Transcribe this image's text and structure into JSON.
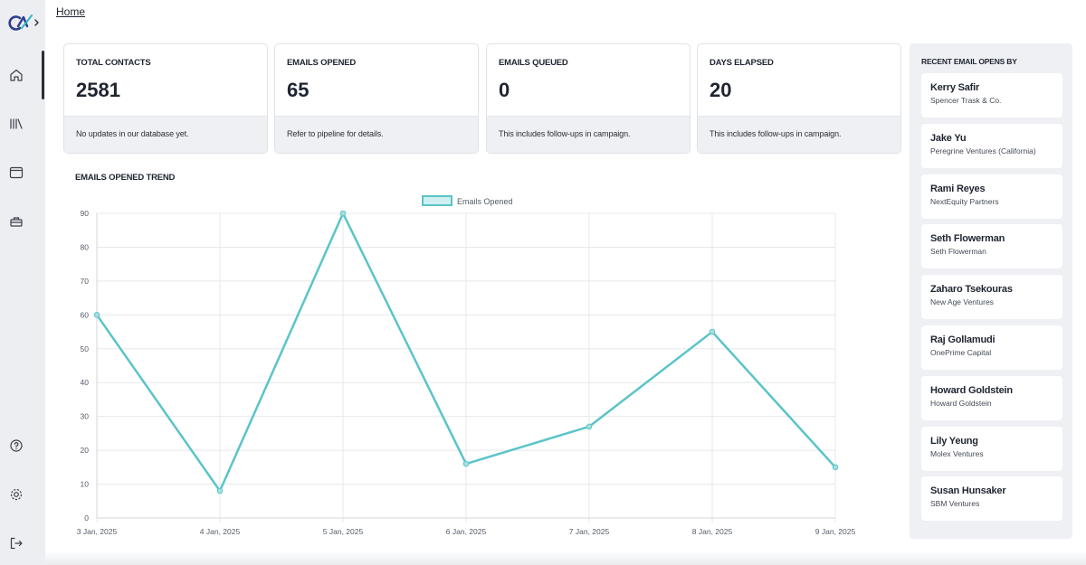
{
  "breadcrumb": {
    "home_label": "Home"
  },
  "sidebar": {
    "items": [
      {
        "name": "home-icon"
      },
      {
        "name": "library-icon"
      },
      {
        "name": "calendar-icon"
      },
      {
        "name": "toolbox-icon"
      },
      {
        "name": "help-icon"
      },
      {
        "name": "settings-icon"
      },
      {
        "name": "logout-icon"
      }
    ]
  },
  "stats": [
    {
      "label": "TOTAL CONTACTS",
      "value": "2581",
      "note": "No updates in our database yet."
    },
    {
      "label": "EMAILS OPENED",
      "value": "65",
      "note": "Refer to pipeline for details."
    },
    {
      "label": "EMAILS QUEUED",
      "value": "0",
      "note": "This includes follow-ups in campaign."
    },
    {
      "label": "DAYS ELAPSED",
      "value": "20",
      "note": "This includes follow-ups in campaign."
    }
  ],
  "trend": {
    "title": "EMAILS OPENED TREND"
  },
  "chart_data": {
    "type": "line",
    "title": "",
    "xlabel": "",
    "ylabel": "",
    "categories": [
      "3 Jan, 2025",
      "4 Jan, 2025",
      "5 Jan, 2025",
      "6 Jan, 2025",
      "7 Jan, 2025",
      "8 Jan, 2025",
      "9 Jan, 2025"
    ],
    "series": [
      {
        "name": "Emails Opened",
        "values": [
          60,
          8,
          90,
          16,
          27,
          55,
          15
        ]
      }
    ],
    "ylim": [
      0,
      90
    ],
    "yticks": [
      0,
      10,
      20,
      30,
      40,
      50,
      60,
      70,
      80,
      90
    ],
    "grid": true,
    "legend": "top-center",
    "color": "#5bc4c8"
  },
  "recent": {
    "title": "RECENT EMAIL OPENS BY",
    "items": [
      {
        "name": "Kerry Safir",
        "company": "Spencer Trask & Co."
      },
      {
        "name": "Jake Yu",
        "company": "Peregrine Ventures (California)"
      },
      {
        "name": "Rami Reyes",
        "company": "NextEquity Partners"
      },
      {
        "name": "Seth Flowerman",
        "company": "Seth Flowerman"
      },
      {
        "name": "Zaharo Tsekouras",
        "company": "New Age Ventures"
      },
      {
        "name": "Raj Gollamudi",
        "company": "OnePrime Capital"
      },
      {
        "name": "Howard Goldstein",
        "company": "Howard Goldstein"
      },
      {
        "name": "Lily Yeung",
        "company": "Molex Ventures"
      },
      {
        "name": "Susan Hunsaker",
        "company": "SBM Ventures"
      }
    ]
  }
}
